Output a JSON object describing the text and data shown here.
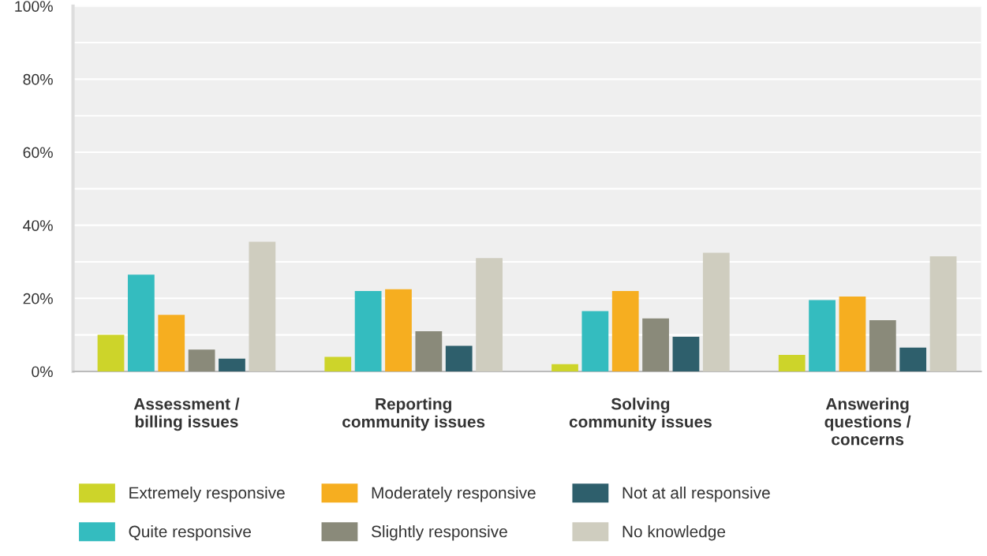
{
  "chart_data": {
    "type": "bar",
    "categories": [
      "Assessment /\nbilling issues",
      "Reporting\ncommunity issues",
      "Solving\ncommunity issues",
      "Answering\nquestions /\nconcerns"
    ],
    "series": [
      {
        "name": "Extremely responsive",
        "color": "#cdd42a",
        "values": [
          10,
          4,
          2,
          4.5
        ]
      },
      {
        "name": "Quite responsive",
        "color": "#34bcbf",
        "values": [
          26.5,
          22,
          16.5,
          19.5
        ]
      },
      {
        "name": "Moderately responsive",
        "color": "#f6ae20",
        "values": [
          15.5,
          22.5,
          22,
          20.5
        ]
      },
      {
        "name": "Slightly responsive",
        "color": "#8a8a7a",
        "values": [
          6,
          11,
          14.5,
          14
        ]
      },
      {
        "name": "Not at all responsive",
        "color": "#2e5f6c",
        "values": [
          3.5,
          7,
          9.5,
          6.5
        ]
      },
      {
        "name": "No knowledge",
        "color": "#cfcdbf",
        "values": [
          35.5,
          31,
          32.5,
          31.5
        ]
      }
    ],
    "ylim": [
      0,
      100
    ],
    "yticks": [
      {
        "value": 0,
        "label": "0%"
      },
      {
        "value": 10,
        "label": null
      },
      {
        "value": 20,
        "label": "20%"
      },
      {
        "value": 30,
        "label": null
      },
      {
        "value": 40,
        "label": "40%"
      },
      {
        "value": 50,
        "label": null
      },
      {
        "value": 60,
        "label": "60%"
      },
      {
        "value": 70,
        "label": null
      },
      {
        "value": 80,
        "label": "80%"
      },
      {
        "value": 90,
        "label": null
      },
      {
        "value": 100,
        "label": "100%"
      }
    ],
    "grid": "y",
    "legend": "bottom"
  }
}
